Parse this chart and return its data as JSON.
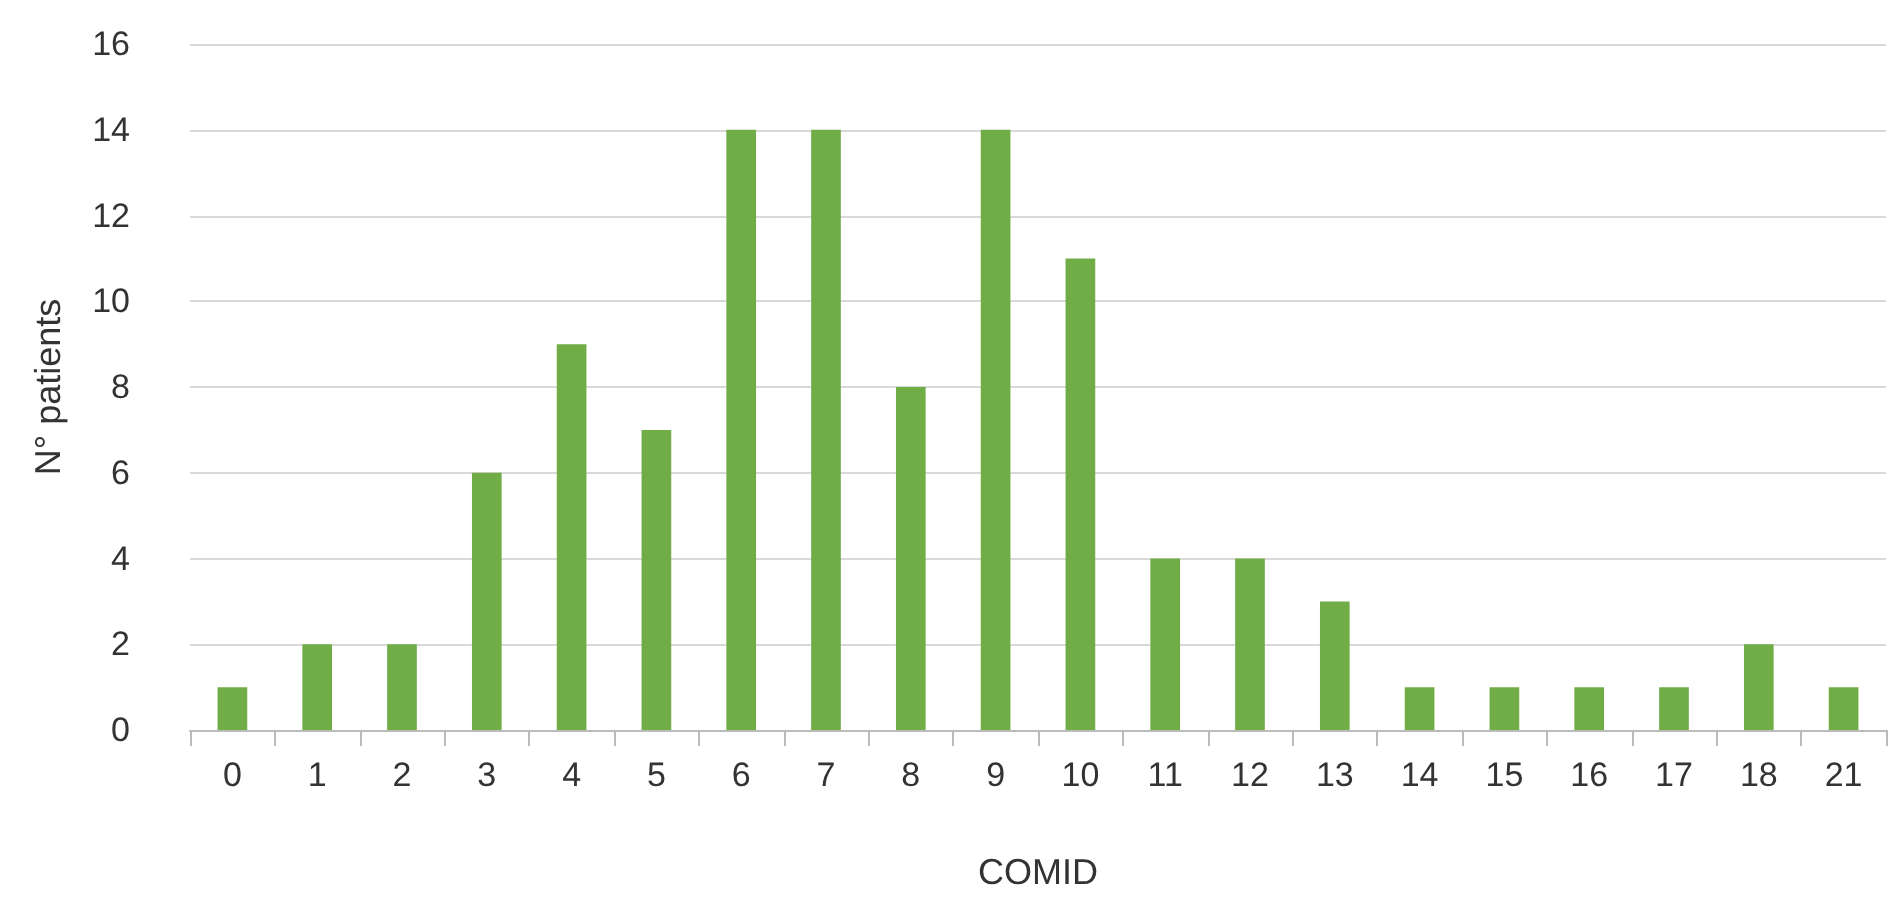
{
  "chart_data": {
    "type": "bar",
    "xlabel": "COMID",
    "ylabel": "N° patients",
    "categories": [
      "0",
      "1",
      "2",
      "3",
      "4",
      "5",
      "6",
      "7",
      "8",
      "9",
      "10",
      "11",
      "12",
      "13",
      "14",
      "15",
      "16",
      "17",
      "18",
      "21"
    ],
    "values": [
      1,
      2,
      2,
      6,
      9,
      7,
      14,
      14,
      8,
      14,
      11,
      4,
      4,
      3,
      1,
      1,
      1,
      1,
      2,
      1
    ],
    "color": "#70ad47",
    "ylim": [
      0,
      16
    ],
    "yticks": [
      0,
      2,
      4,
      6,
      8,
      10,
      12,
      14,
      16
    ],
    "grid": "y"
  }
}
